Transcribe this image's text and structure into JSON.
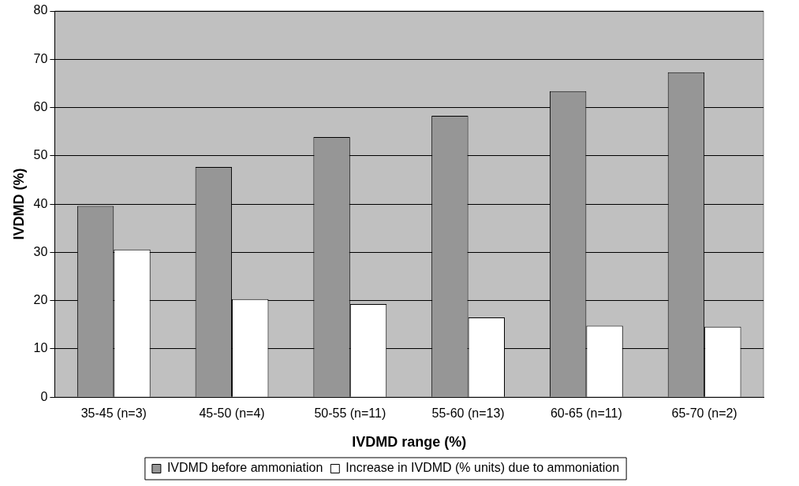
{
  "chart_data": {
    "type": "bar",
    "xlabel": "IVDMD range (%)",
    "ylabel": "IVDMD (%)",
    "categories": [
      "35-45 (n=3)",
      "45-50 (n=4)",
      "50-55 (n=11)",
      "55-60 (n=13)",
      "60-65 (n=11)",
      "65-70 (n=2)"
    ],
    "series": [
      {
        "name": "IVDMD before ammoniation",
        "color": "#969696",
        "values": [
          39.6,
          47.7,
          53.9,
          58.3,
          63.4,
          67.3
        ]
      },
      {
        "name": "Increase in IVDMD (% units) due to ammoniation",
        "color": "#ffffff",
        "values": [
          30.6,
          20.3,
          19.3,
          16.5,
          14.8,
          14.6
        ]
      }
    ],
    "ylim": [
      0,
      80
    ],
    "yticks": [
      0,
      10,
      20,
      30,
      40,
      50,
      60,
      70,
      80
    ],
    "grid": "y",
    "legend": "bottom"
  }
}
